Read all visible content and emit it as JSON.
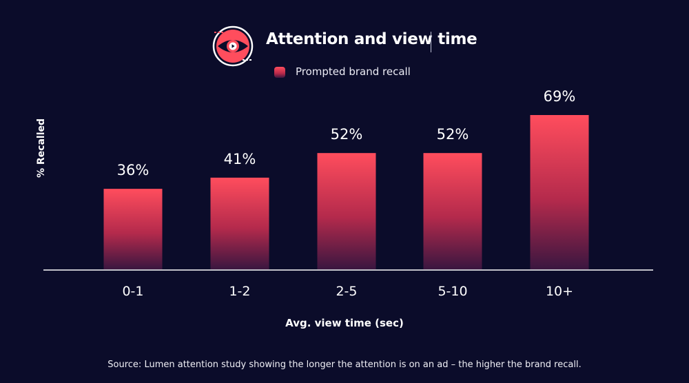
{
  "header": {
    "title": "Attention and view time"
  },
  "icons": {
    "logo": "eye-play-icon"
  },
  "colors": {
    "background": "#0b0c2a",
    "bar_top": "#ff4d5d",
    "bar_bottom": "#3a1640",
    "accent": "#ff4d5d"
  },
  "footer": {
    "source": "Source: Lumen attention study showing the longer the attention is on an ad – the higher the brand recall."
  },
  "chart_data": {
    "type": "bar",
    "title": "Attention and view time",
    "xlabel": "Avg. view time (sec)",
    "ylabel": "% Recalled",
    "categories": [
      "0-1",
      "1-2",
      "2-5",
      "5-10",
      "10+"
    ],
    "series": [
      {
        "name": "Prompted brand recall",
        "values": [
          36,
          41,
          52,
          52,
          69
        ],
        "labels": [
          "36%",
          "41%",
          "52%",
          "52%",
          "69%"
        ]
      }
    ],
    "ylim": [
      0,
      69
    ],
    "grid": false,
    "legend": "top-center"
  }
}
